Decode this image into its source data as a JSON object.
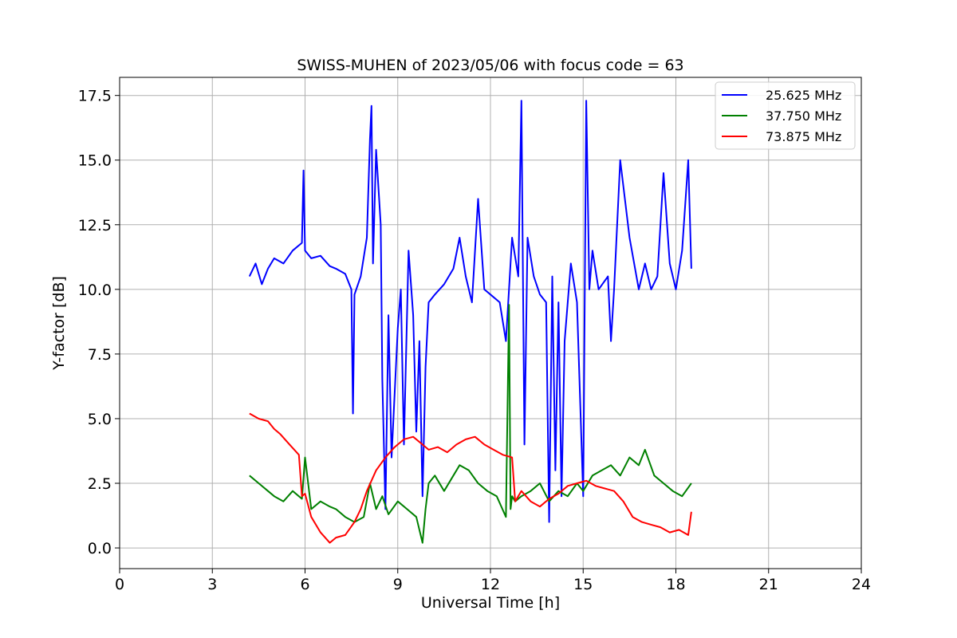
{
  "chart_data": {
    "type": "line",
    "title": "SWISS-MUHEN of 2023/05/06 with focus code = 63",
    "xlabel": "Universal Time [h]",
    "ylabel": "Y-factor [dB]",
    "xlim": [
      0,
      24
    ],
    "ylim": [
      -0.8,
      18.2
    ],
    "xticks": [
      0,
      3,
      6,
      9,
      12,
      15,
      18,
      21,
      24
    ],
    "xtick_labels": [
      "0",
      "3",
      "6",
      "9",
      "12",
      "15",
      "18",
      "21",
      "24"
    ],
    "yticks": [
      0.0,
      2.5,
      5.0,
      7.5,
      10.0,
      12.5,
      15.0,
      17.5
    ],
    "ytick_labels": [
      "0.0",
      "2.5",
      "5.0",
      "7.5",
      "10.0",
      "12.5",
      "15.0",
      "17.5"
    ],
    "grid": true,
    "legend_position": "top-right",
    "series": [
      {
        "name": "25.625 MHz",
        "color": "#0000ff",
        "x": [
          4.2,
          4.4,
          4.6,
          4.8,
          5.0,
          5.3,
          5.6,
          5.9,
          5.95,
          6.0,
          6.2,
          6.5,
          6.8,
          7.0,
          7.3,
          7.5,
          7.55,
          7.6,
          7.8,
          8.0,
          8.1,
          8.15,
          8.2,
          8.3,
          8.45,
          8.5,
          8.6,
          8.7,
          8.8,
          9.0,
          9.1,
          9.2,
          9.35,
          9.5,
          9.6,
          9.7,
          9.8,
          9.9,
          10.0,
          10.2,
          10.5,
          10.8,
          11.0,
          11.2,
          11.4,
          11.6,
          11.8,
          12.0,
          12.3,
          12.5,
          12.7,
          12.9,
          13.0,
          13.1,
          13.2,
          13.4,
          13.6,
          13.8,
          13.9,
          14.0,
          14.1,
          14.2,
          14.3,
          14.4,
          14.6,
          14.8,
          15.0,
          15.1,
          15.2,
          15.3,
          15.5,
          15.8,
          15.9,
          16.0,
          16.2,
          16.5,
          16.8,
          17.0,
          17.2,
          17.4,
          17.6,
          17.8,
          18.0,
          18.2,
          18.4,
          18.5
        ],
        "y": [
          10.5,
          11.0,
          10.2,
          10.8,
          11.2,
          11.0,
          11.5,
          11.8,
          14.6,
          11.5,
          11.2,
          11.3,
          10.9,
          10.8,
          10.6,
          10.0,
          5.2,
          9.8,
          10.5,
          12.0,
          15.8,
          17.1,
          11.0,
          15.4,
          12.5,
          6.5,
          1.5,
          9.0,
          3.5,
          8.5,
          10.0,
          4.0,
          11.5,
          9.0,
          4.5,
          8.0,
          2.0,
          7.0,
          9.5,
          9.8,
          10.2,
          10.8,
          12.0,
          10.5,
          9.5,
          13.5,
          10.0,
          9.8,
          9.5,
          8.0,
          12.0,
          10.5,
          17.3,
          4.0,
          12.0,
          10.5,
          9.8,
          9.5,
          1.0,
          10.5,
          3.0,
          9.5,
          2.0,
          8.0,
          11.0,
          9.5,
          2.0,
          17.3,
          10.0,
          11.5,
          10.0,
          10.5,
          8.0,
          10.0,
          15.0,
          12.0,
          10.0,
          11.0,
          10.0,
          10.5,
          14.5,
          11.0,
          10.0,
          11.5,
          15.0,
          10.8
        ]
      },
      {
        "name": "37.750 MHz",
        "color": "#008000",
        "x": [
          4.2,
          4.5,
          4.8,
          5.0,
          5.3,
          5.6,
          5.9,
          6.0,
          6.2,
          6.5,
          6.8,
          7.0,
          7.3,
          7.6,
          7.9,
          8.1,
          8.3,
          8.5,
          8.7,
          9.0,
          9.3,
          9.6,
          9.8,
          9.9,
          10.0,
          10.2,
          10.5,
          10.8,
          11.0,
          11.3,
          11.6,
          11.9,
          12.2,
          12.5,
          12.6,
          12.65,
          12.7,
          12.8,
          13.0,
          13.3,
          13.6,
          13.9,
          14.2,
          14.5,
          14.8,
          15.0,
          15.3,
          15.6,
          15.9,
          16.2,
          16.5,
          16.8,
          17.0,
          17.3,
          17.6,
          17.9,
          18.2,
          18.5
        ],
        "y": [
          2.8,
          2.5,
          2.2,
          2.0,
          1.8,
          2.2,
          1.9,
          3.5,
          1.5,
          1.8,
          1.6,
          1.5,
          1.2,
          1.0,
          1.2,
          2.5,
          1.5,
          2.0,
          1.3,
          1.8,
          1.5,
          1.2,
          0.2,
          1.5,
          2.5,
          2.8,
          2.2,
          2.8,
          3.2,
          3.0,
          2.5,
          2.2,
          2.0,
          1.2,
          9.4,
          1.5,
          2.0,
          1.8,
          2.0,
          2.2,
          2.5,
          1.8,
          2.2,
          2.0,
          2.5,
          2.2,
          2.8,
          3.0,
          3.2,
          2.8,
          3.5,
          3.2,
          3.8,
          2.8,
          2.5,
          2.2,
          2.0,
          2.5
        ]
      },
      {
        "name": "73.875 MHz",
        "color": "#ff0000",
        "x": [
          4.2,
          4.5,
          4.8,
          5.0,
          5.2,
          5.5,
          5.8,
          5.9,
          6.0,
          6.2,
          6.5,
          6.8,
          7.0,
          7.3,
          7.6,
          7.8,
          8.0,
          8.3,
          8.6,
          8.9,
          9.2,
          9.5,
          9.8,
          10.0,
          10.3,
          10.6,
          10.9,
          11.2,
          11.5,
          11.8,
          12.1,
          12.4,
          12.7,
          12.8,
          13.0,
          13.3,
          13.6,
          13.9,
          14.2,
          14.5,
          14.8,
          15.1,
          15.4,
          15.7,
          16.0,
          16.3,
          16.6,
          16.9,
          17.2,
          17.5,
          17.8,
          18.1,
          18.4,
          18.5
        ],
        "y": [
          5.2,
          5.0,
          4.9,
          4.6,
          4.4,
          4.0,
          3.6,
          2.0,
          2.1,
          1.2,
          0.6,
          0.2,
          0.4,
          0.5,
          1.0,
          1.5,
          2.2,
          3.0,
          3.5,
          3.9,
          4.2,
          4.3,
          4.0,
          3.8,
          3.9,
          3.7,
          4.0,
          4.2,
          4.3,
          4.0,
          3.8,
          3.6,
          3.5,
          1.8,
          2.2,
          1.8,
          1.6,
          1.9,
          2.1,
          2.4,
          2.5,
          2.6,
          2.4,
          2.3,
          2.2,
          1.8,
          1.2,
          1.0,
          0.9,
          0.8,
          0.6,
          0.7,
          0.5,
          1.4
        ]
      }
    ]
  }
}
